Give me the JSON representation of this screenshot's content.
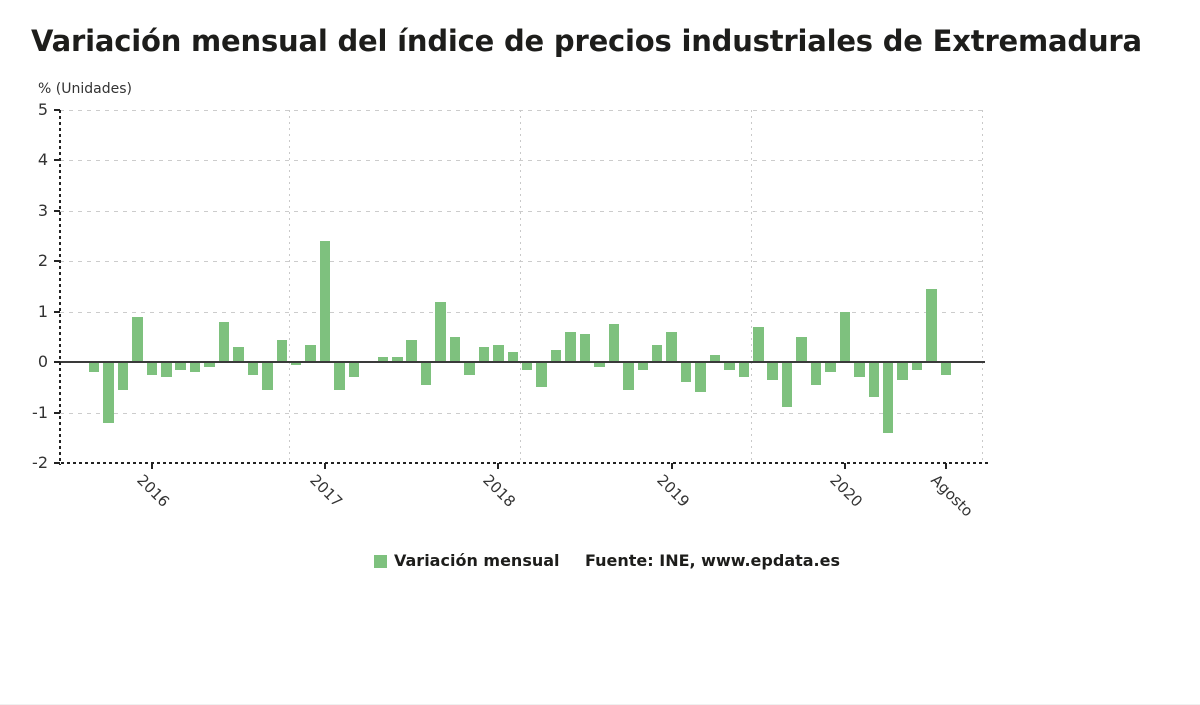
{
  "title": "Variación mensual del índice de precios industriales de Extremadura",
  "y_axis_title": "% (Unidades)",
  "legend": {
    "series_label": "Variación mensual",
    "source_label": "Fuente: INE, www.epdata.es"
  },
  "colors": {
    "bar": "#7EC17E",
    "title_text": "#1D1D1B",
    "axis_text": "#333333",
    "gridline": "#CCCCCC",
    "axis_line": "#222222",
    "zero_line": "#3A3A3A"
  },
  "chart_data": {
    "type": "bar",
    "title": "Variación mensual del índice de precios industriales de Extremadura",
    "xlabel": "",
    "ylabel": "% (Unidades)",
    "ylim": [
      -2,
      5
    ],
    "y_ticks": [
      5,
      4,
      3,
      2,
      1,
      0,
      -1,
      -2
    ],
    "grid": "dashed",
    "legend_position": "bottom",
    "series_name": "Variación mensual",
    "categories": [
      "2015-09",
      "2015-10",
      "2015-11",
      "2015-12",
      "2016-01",
      "2016-02",
      "2016-03",
      "2016-04",
      "2016-05",
      "2016-06",
      "2016-07",
      "2016-08",
      "2016-09",
      "2016-10",
      "2016-11",
      "2016-12",
      "2017-01",
      "2017-02",
      "2017-03",
      "2017-04",
      "2017-05",
      "2017-06",
      "2017-07",
      "2017-08",
      "2017-09",
      "2017-10",
      "2017-11",
      "2017-12",
      "2018-01",
      "2018-02",
      "2018-03",
      "2018-04",
      "2018-05",
      "2018-06",
      "2018-07",
      "2018-08",
      "2018-09",
      "2018-10",
      "2018-11",
      "2018-12",
      "2019-01",
      "2019-02",
      "2019-03",
      "2019-04",
      "2019-05",
      "2019-06",
      "2019-07",
      "2019-08",
      "2019-09",
      "2019-10",
      "2019-11",
      "2019-12",
      "2020-01",
      "2020-02",
      "2020-03",
      "2020-04",
      "2020-05",
      "2020-06",
      "2020-07",
      "2020-08"
    ],
    "values": [
      -0.2,
      -1.2,
      -0.55,
      0.9,
      -0.25,
      -0.3,
      -0.15,
      -0.2,
      -0.1,
      0.8,
      0.3,
      -0.25,
      -0.55,
      0.45,
      -0.05,
      0.35,
      2.4,
      -0.55,
      -0.3,
      0.0,
      0.1,
      0.1,
      0.45,
      -0.45,
      1.2,
      0.5,
      -0.25,
      0.3,
      0.35,
      0.2,
      -0.15,
      -0.5,
      0.25,
      0.6,
      0.55,
      -0.1,
      0.75,
      -0.55,
      -0.15,
      0.35,
      0.6,
      -0.4,
      -0.6,
      0.15,
      -0.15,
      -0.3,
      0.7,
      -0.35,
      -0.9,
      0.5,
      -0.45,
      -0.2,
      1.0,
      -0.3,
      -0.7,
      -1.4,
      -0.35,
      -0.15,
      1.45,
      -0.25
    ],
    "x_tick_labels": [
      {
        "label": "2016",
        "index": 4
      },
      {
        "label": "2017",
        "index": 16
      },
      {
        "label": "2018",
        "index": 28
      },
      {
        "label": "2019",
        "index": 40
      },
      {
        "label": "2020",
        "index": 52
      },
      {
        "label": "Agosto",
        "index": 59
      }
    ],
    "v_gridline_boundaries": [
      13.5,
      29.5,
      45.5,
      61.5
    ]
  }
}
